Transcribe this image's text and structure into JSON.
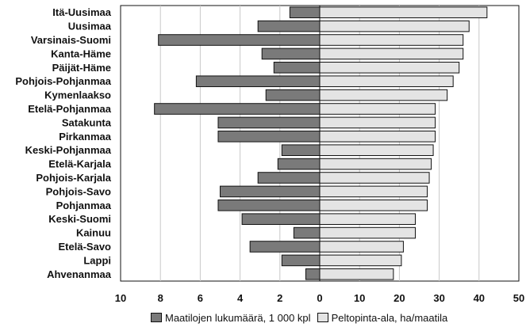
{
  "chart_data": {
    "type": "bar",
    "orientation": "horizontal",
    "layout": "diverging",
    "categories": [
      "Itä-Uusimaa",
      "Uusimaa",
      "Varsinais-Suomi",
      "Kanta-Häme",
      "Päijät-Häme",
      "Pohjois-Pohjanmaa",
      "Kymenlaakso",
      "Etelä-Pohjanmaa",
      "Satakunta",
      "Pirkanmaa",
      "Keski-Pohjanmaa",
      "Etelä-Karjala",
      "Pohjois-Karjala",
      "Pohjois-Savo",
      "Pohjanmaa",
      "Keski-Suomi",
      "Kainuu",
      "Etelä-Savo",
      "Lappi",
      "Ahvenanmaa"
    ],
    "series": [
      {
        "name": "Maatilojen lukumäärä, 1 000 kpl",
        "side": "left",
        "color": "#7a7a7a",
        "values": [
          1.5,
          3.1,
          8.1,
          2.9,
          2.3,
          6.2,
          2.7,
          8.3,
          5.1,
          5.1,
          1.9,
          2.1,
          3.1,
          5.0,
          5.1,
          3.9,
          1.3,
          3.5,
          1.9,
          0.7
        ]
      },
      {
        "name": "Peltopinta-ala, ha/maatila",
        "side": "right",
        "color": "#e4e4e4",
        "values": [
          42,
          37.5,
          36,
          36,
          35,
          33.5,
          32,
          29,
          29,
          29,
          28.5,
          28,
          27.5,
          27,
          27,
          24,
          24,
          21,
          20.5,
          18.5
        ]
      }
    ],
    "xticks_left": [
      "10",
      "8",
      "6",
      "4",
      "2",
      "0"
    ],
    "xticks_right": [
      "10",
      "20",
      "30",
      "40",
      "50"
    ],
    "left_range": [
      0,
      10
    ],
    "right_range": [
      0,
      50
    ],
    "grid": true,
    "legend_position": "bottom"
  }
}
